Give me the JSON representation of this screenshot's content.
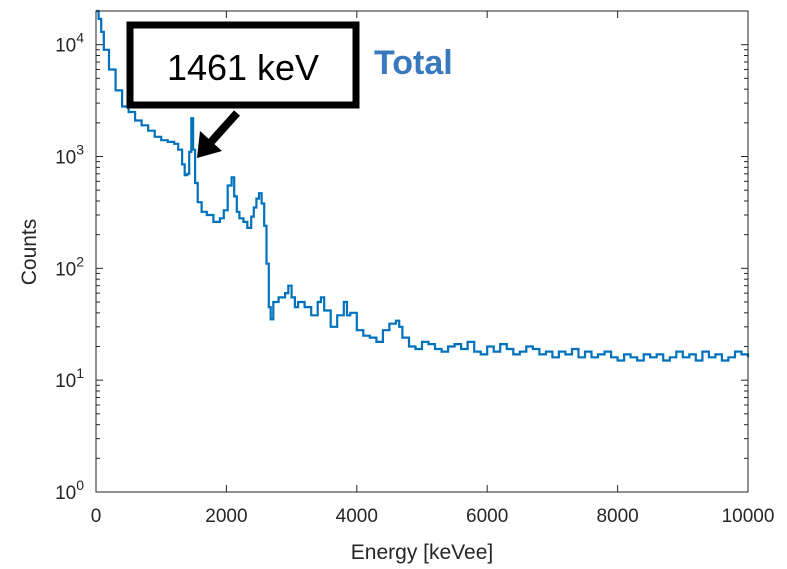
{
  "chart_data": {
    "type": "line",
    "xlabel": "Energy [keVee]",
    "ylabel": "Counts",
    "xlim": [
      0,
      10000
    ],
    "ylim": [
      1,
      20000
    ],
    "yscale": "log",
    "grid": false,
    "x_ticks": [
      "0",
      "2000",
      "4000",
      "6000",
      "8000",
      "10000"
    ],
    "y_ticks": [
      {
        "base": "10",
        "exp": "0"
      },
      {
        "base": "10",
        "exp": "1"
      },
      {
        "base": "10",
        "exp": "2"
      },
      {
        "base": "10",
        "exp": "3"
      },
      {
        "base": "10",
        "exp": "4"
      }
    ],
    "series_label": "Total",
    "annotation": {
      "text": "1461 keV",
      "x": 1461,
      "y": 900
    },
    "colors": {
      "series": "#0072BD",
      "label": "#3A78BE",
      "axes": "#262626"
    },
    "series": [
      {
        "x": [
          0,
          40,
          80,
          120,
          200,
          300,
          400,
          500,
          600,
          700,
          800,
          900,
          1000,
          1100,
          1200,
          1260,
          1320,
          1360,
          1400,
          1430,
          1461,
          1490,
          1520,
          1560,
          1620,
          1700,
          1800,
          1900,
          1960,
          2020,
          2080,
          2120,
          2160,
          2200,
          2260,
          2320,
          2380,
          2420,
          2460,
          2500,
          2540,
          2580,
          2615,
          2650,
          2680,
          2720,
          2800,
          2900,
          2950,
          3000,
          3050,
          3100,
          3200,
          3300,
          3400,
          3450,
          3500,
          3600,
          3700,
          3800,
          3850,
          3900,
          4000,
          4100,
          4200,
          4300,
          4400,
          4500,
          4600,
          4650,
          4700,
          4800,
          4900,
          5000,
          5100,
          5200,
          5300,
          5400,
          5500,
          5600,
          5700,
          5800,
          5900,
          6000,
          6100,
          6200,
          6300,
          6400,
          6500,
          6600,
          6700,
          6800,
          6900,
          7000,
          7100,
          7200,
          7300,
          7400,
          7500,
          7600,
          7700,
          7800,
          7900,
          8000,
          8100,
          8200,
          8300,
          8400,
          8500,
          8600,
          8700,
          8800,
          8900,
          9000,
          9100,
          9200,
          9300,
          9400,
          9500,
          9600,
          9700,
          9800,
          9900,
          10000
        ],
        "y": [
          20000,
          17000,
          13000,
          9000,
          6000,
          3900,
          2800,
          2500,
          2100,
          1900,
          1700,
          1500,
          1400,
          1350,
          1300,
          1150,
          850,
          680,
          700,
          1100,
          2200,
          1150,
          580,
          390,
          320,
          300,
          260,
          280,
          330,
          550,
          650,
          440,
          320,
          280,
          260,
          230,
          290,
          350,
          420,
          470,
          380,
          240,
          110,
          45,
          35,
          50,
          55,
          60,
          70,
          55,
          45,
          50,
          45,
          38,
          50,
          55,
          42,
          30,
          38,
          50,
          38,
          40,
          28,
          25,
          24,
          22,
          28,
          32,
          34,
          30,
          24,
          20,
          19,
          22,
          21,
          19,
          18,
          20,
          21,
          19,
          22,
          18,
          17,
          20,
          18,
          21,
          19,
          17,
          18,
          20,
          19,
          17,
          18,
          16,
          18,
          17,
          19,
          16,
          18,
          16,
          17,
          18,
          16,
          15,
          17,
          16,
          15,
          17,
          16,
          17,
          15,
          16,
          18,
          16,
          17,
          15,
          18,
          16,
          17,
          15,
          16,
          18,
          17,
          16
        ]
      }
    ]
  }
}
